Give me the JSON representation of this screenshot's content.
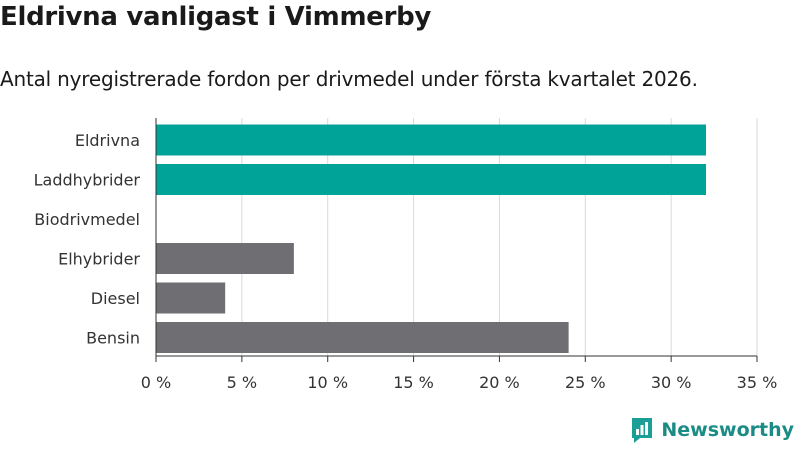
{
  "title": "Eldrivna vanligast i Vimmerby",
  "subtitle": "Antal nyregistrerade fordon per drivmedel under första kvartalet 2026.",
  "brand": {
    "name": "Newsworthy",
    "color": "#1a9e96"
  },
  "colors": {
    "highlight": "#00a397",
    "default": "#6e6e73",
    "grid": "#d9d9d9",
    "text": "#333333"
  },
  "chart_data": {
    "type": "bar",
    "orientation": "horizontal",
    "categories": [
      "Eldrivna",
      "Laddhybrider",
      "Biodrivmedel",
      "Elhybrider",
      "Diesel",
      "Bensin"
    ],
    "values": [
      32,
      32,
      0,
      8,
      4,
      24
    ],
    "highlight": [
      true,
      true,
      false,
      false,
      false,
      false
    ],
    "xlim": [
      0,
      35
    ],
    "xticks": [
      0,
      5,
      10,
      15,
      20,
      25,
      30,
      35
    ],
    "xtick_labels": [
      "0 %",
      "5 %",
      "10 %",
      "15 %",
      "20 %",
      "25 %",
      "30 %",
      "35 %"
    ],
    "grid": true
  }
}
